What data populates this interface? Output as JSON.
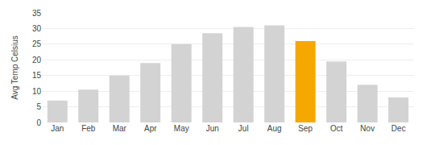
{
  "chart_data": {
    "type": "bar",
    "ylabel": "Avg Temp Celsius",
    "categories": [
      "Jan",
      "Feb",
      "Mar",
      "Apr",
      "May",
      "Jun",
      "Jul",
      "Aug",
      "Sep",
      "Oct",
      "Nov",
      "Dec"
    ],
    "values": [
      7,
      10.5,
      15,
      19,
      25,
      28.5,
      30.5,
      31,
      26,
      19.5,
      12,
      8
    ],
    "colors": [
      "#d3d3d3",
      "#d3d3d3",
      "#d3d3d3",
      "#d3d3d3",
      "#d3d3d3",
      "#d3d3d3",
      "#d3d3d3",
      "#d3d3d3",
      "#f5a800",
      "#d3d3d3",
      "#d3d3d3",
      "#d3d3d3"
    ],
    "ylim": [
      0,
      35
    ],
    "yticks": [
      0,
      5,
      10,
      15,
      20,
      25,
      30,
      35
    ],
    "grid": true
  }
}
